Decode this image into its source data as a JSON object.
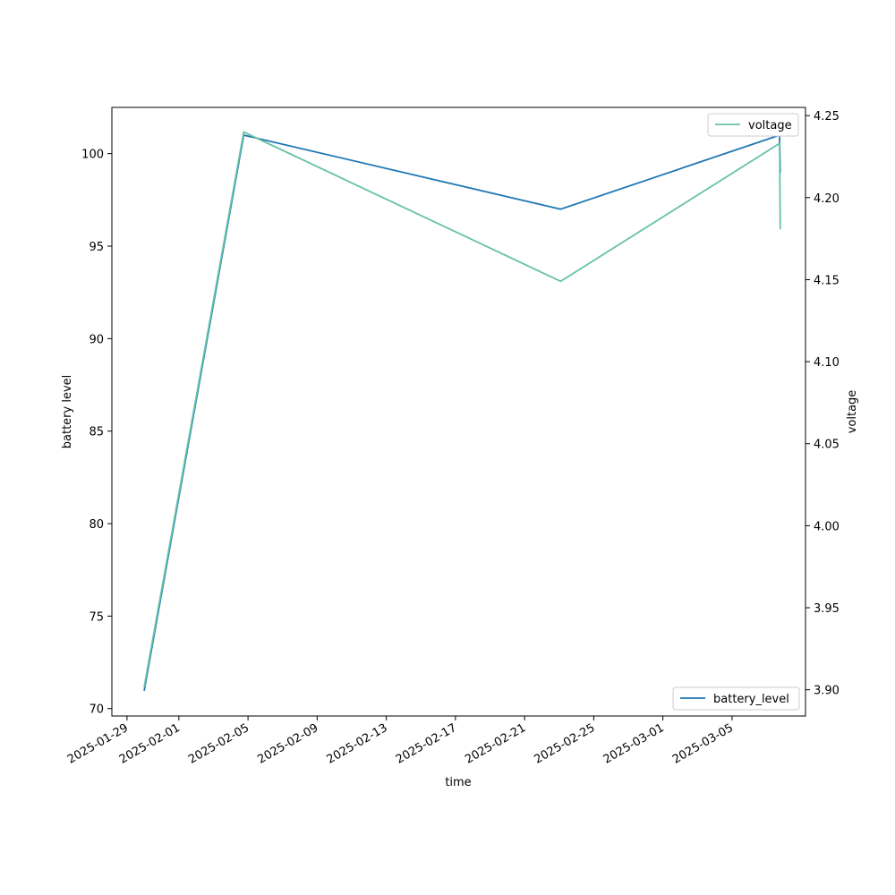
{
  "chart_data": {
    "type": "line",
    "xlabel": "time",
    "ylabel_left": "battery level",
    "ylabel_right": "voltage",
    "xlim": [
      "2025-01-28T03:00",
      "2025-03-09T06:00"
    ],
    "ylim_left": [
      69.6,
      102.5
    ],
    "ylim_right": [
      3.884,
      4.255
    ],
    "x_ticks": [
      "2025-01-29",
      "2025-02-01",
      "2025-02-05",
      "2025-02-09",
      "2025-02-13",
      "2025-02-17",
      "2025-02-21",
      "2025-02-25",
      "2025-03-01",
      "2025-03-05"
    ],
    "y_ticks_left": [
      70,
      75,
      80,
      85,
      90,
      95,
      100
    ],
    "y_ticks_right": [
      3.9,
      3.95,
      4.0,
      4.05,
      4.1,
      4.15,
      4.2,
      4.25
    ],
    "series": [
      {
        "name": "battery_level",
        "axis": "left",
        "color": "#1f77b4",
        "x": [
          "2025-01-30T00:00",
          "2025-02-04T18:00",
          "2025-02-23T02:00",
          "2025-03-07T18:00",
          "2025-03-07T19:00"
        ],
        "values": [
          71,
          101,
          97,
          101,
          99
        ]
      },
      {
        "name": "voltage",
        "axis": "right",
        "color": "#66c2a5",
        "x": [
          "2025-01-30T00:00",
          "2025-02-04T18:00",
          "2025-02-23T02:00",
          "2025-03-07T18:00",
          "2025-03-07T19:00"
        ],
        "values": [
          3.902,
          4.24,
          4.149,
          4.233,
          4.181
        ]
      }
    ],
    "legends": [
      {
        "label": "voltage",
        "placement": "top-right",
        "color": "#66c2a5"
      },
      {
        "label": "battery_level",
        "placement": "bottom-right",
        "color": "#1f77b4"
      }
    ],
    "grid": false
  }
}
